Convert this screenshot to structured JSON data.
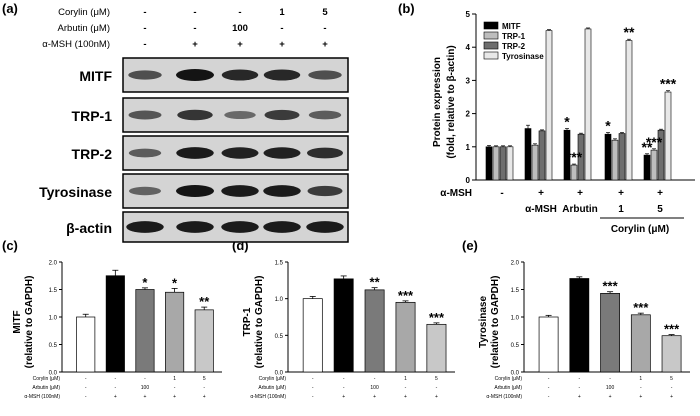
{
  "panel_labels": [
    "(a)",
    "(b)",
    "(c)",
    "(d)",
    "(e)"
  ],
  "blot": {
    "treatments": [
      {
        "label": "Corylin (μM)",
        "values": [
          "-",
          "-",
          "-",
          "1",
          "5"
        ]
      },
      {
        "label": "Arbutin (μM)",
        "values": [
          "-",
          "-",
          "100",
          "-",
          "-"
        ]
      },
      {
        "label": "α-MSH (100nM)",
        "values": [
          "-",
          "+",
          "+",
          "+",
          "+"
        ]
      }
    ],
    "rows": [
      {
        "label": "MITF",
        "intensity": [
          0.55,
          1.0,
          0.85,
          0.85,
          0.55
        ]
      },
      {
        "label": "TRP-1",
        "intensity": [
          0.5,
          0.75,
          0.35,
          0.7,
          0.45
        ]
      },
      {
        "label": "TRP-2",
        "intensity": [
          0.45,
          0.95,
          0.9,
          0.9,
          0.8
        ]
      },
      {
        "label": "Tyrosinase",
        "intensity": [
          0.4,
          1.0,
          0.95,
          0.95,
          0.7
        ]
      },
      {
        "label": "β-actin",
        "intensity": [
          0.95,
          0.95,
          0.95,
          0.95,
          0.95
        ]
      }
    ]
  },
  "chart_data": [
    {
      "type": "bar",
      "panel": "(b)",
      "ylabel_line1": "Protein expression",
      "ylabel_line2": "(fold, relative to β-actin)",
      "ylim": [
        0,
        5
      ],
      "yticks": [
        "0",
        "1",
        "2",
        "3",
        "4",
        "5"
      ],
      "series": [
        {
          "name": "MITF",
          "color": "#000000",
          "values": [
            1.0,
            1.55,
            1.5,
            1.38,
            0.75
          ],
          "errors": [
            0.04,
            0.1,
            0.05,
            0.05,
            0.04
          ]
        },
        {
          "name": "TRP-1",
          "color": "#bdbdbd",
          "values": [
            1.0,
            1.05,
            0.45,
            1.2,
            0.9
          ],
          "errors": [
            0.03,
            0.04,
            0.03,
            0.04,
            0.04
          ]
        },
        {
          "name": "TRP-2",
          "color": "#6e6e6e",
          "values": [
            1.0,
            1.48,
            1.38,
            1.4,
            1.5
          ],
          "errors": [
            0.03,
            0.03,
            0.03,
            0.03,
            0.03
          ]
        },
        {
          "name": "Tyrosinase",
          "color": "#e8e8e8",
          "values": [
            1.0,
            4.5,
            4.55,
            4.2,
            2.65
          ],
          "errors": [
            0.03,
            0.03,
            0.03,
            0.04,
            0.04
          ]
        }
      ],
      "xrow1": [
        "-",
        "+",
        "+",
        "+",
        "+"
      ],
      "xrow1_label": "α-MSH",
      "xrow2": [
        "",
        "α-MSH",
        "Arbutin",
        "1",
        "5"
      ],
      "xgroup_label": "Corylin (μM)",
      "annotations": [
        {
          "group": 2,
          "series": 0,
          "text": "*"
        },
        {
          "group": 2,
          "series": 1,
          "text": "***"
        },
        {
          "group": 3,
          "series": 0,
          "text": "*"
        },
        {
          "group": 3,
          "series": 3,
          "text": "**"
        },
        {
          "group": 4,
          "series": 0,
          "text": "**"
        },
        {
          "group": 4,
          "series": 1,
          "text": "***"
        },
        {
          "group": 4,
          "series": 3,
          "text": "***"
        }
      ]
    },
    {
      "type": "bar",
      "panel": "(c)",
      "ylabel_line1": "MITF",
      "ylabel_line2": "(relative to GAPDH)",
      "ylim": [
        0,
        2.0
      ],
      "yticks": [
        "0.0",
        "0.5",
        "1.0",
        "1.5",
        "2.0"
      ],
      "values": [
        1.0,
        1.75,
        1.5,
        1.45,
        1.13
      ],
      "errors": [
        0.05,
        0.1,
        0.03,
        0.07,
        0.05
      ],
      "colors": [
        "#ffffff",
        "#000000",
        "#7a7a7a",
        "#a8a8a8",
        "#c8c8c8"
      ],
      "stars": [
        "",
        "",
        "*",
        "*",
        "**"
      ],
      "treatment_labels": [
        "Corylin  (μM)",
        "Arbutin  (μM)",
        "α-MSH  (100nM)"
      ],
      "treatment_rows": [
        [
          "-",
          "-",
          "-",
          "1",
          "5"
        ],
        [
          "-",
          "-",
          "100",
          "-",
          "-"
        ],
        [
          "-",
          "+",
          "+",
          "+",
          "+"
        ]
      ]
    },
    {
      "type": "bar",
      "panel": "(d)",
      "ylabel_line1": "TRP-1",
      "ylabel_line2": "(relative to GAPDH)",
      "ylim": [
        0,
        1.5
      ],
      "yticks": [
        "0.0",
        "0.5",
        "1.0",
        "1.5"
      ],
      "values": [
        1.0,
        1.27,
        1.12,
        0.95,
        0.65
      ],
      "errors": [
        0.03,
        0.04,
        0.03,
        0.02,
        0.02
      ],
      "colors": [
        "#ffffff",
        "#000000",
        "#7a7a7a",
        "#a8a8a8",
        "#c8c8c8"
      ],
      "stars": [
        "",
        "",
        "**",
        "***",
        "***"
      ],
      "treatment_labels": [
        "Corylin  (μM)",
        "Arbutin  (μM)",
        "α-MSH  (100nM)"
      ],
      "treatment_rows": [
        [
          "-",
          "-",
          "-",
          "1",
          "5"
        ],
        [
          "-",
          "-",
          "100",
          "-",
          "-"
        ],
        [
          "-",
          "+",
          "+",
          "+",
          "+"
        ]
      ]
    },
    {
      "type": "bar",
      "panel": "(e)",
      "ylabel_line1": "Tyrosinase",
      "ylabel_line2": "(relative to GAPDH)",
      "ylim": [
        0,
        2.0
      ],
      "yticks": [
        "0.0",
        "0.5",
        "1.0",
        "1.5",
        "2.0"
      ],
      "values": [
        1.0,
        1.7,
        1.43,
        1.04,
        0.66
      ],
      "errors": [
        0.03,
        0.03,
        0.03,
        0.03,
        0.02
      ],
      "colors": [
        "#ffffff",
        "#000000",
        "#7a7a7a",
        "#a8a8a8",
        "#c8c8c8"
      ],
      "stars": [
        "",
        "",
        "***",
        "***",
        "***"
      ],
      "treatment_labels": [
        "Corylin  (μM)",
        "Arbutin  (μM)",
        "α-MSH  (100nM)"
      ],
      "treatment_rows": [
        [
          "-",
          "-",
          "-",
          "1",
          "5"
        ],
        [
          "-",
          "-",
          "100",
          "-",
          "-"
        ],
        [
          "-",
          "+",
          "+",
          "+",
          "+"
        ]
      ]
    }
  ]
}
